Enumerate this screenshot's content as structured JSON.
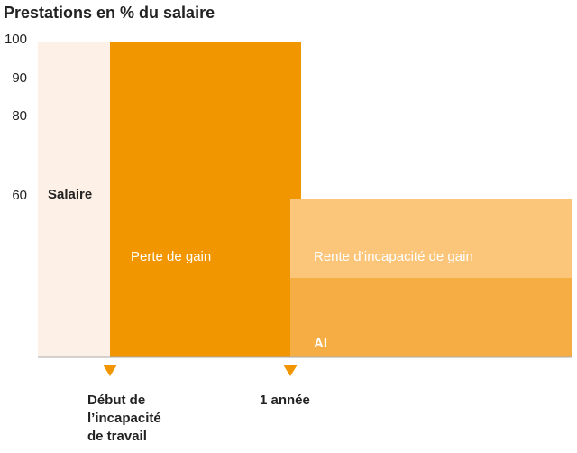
{
  "title": "Prestations en % du salaire",
  "y_axis": {
    "ticks": [
      100,
      90,
      80,
      60
    ]
  },
  "regions": [
    {
      "label": "Salaire"
    },
    {
      "label": "Perte de gain"
    },
    {
      "label": "Rente d’incapacité de gain"
    },
    {
      "label": "AI"
    }
  ],
  "milestones": [
    {
      "label": [
        "Début de",
        "l’incapacité",
        "de travail"
      ]
    },
    {
      "label": [
        "1 année"
      ]
    }
  ]
}
